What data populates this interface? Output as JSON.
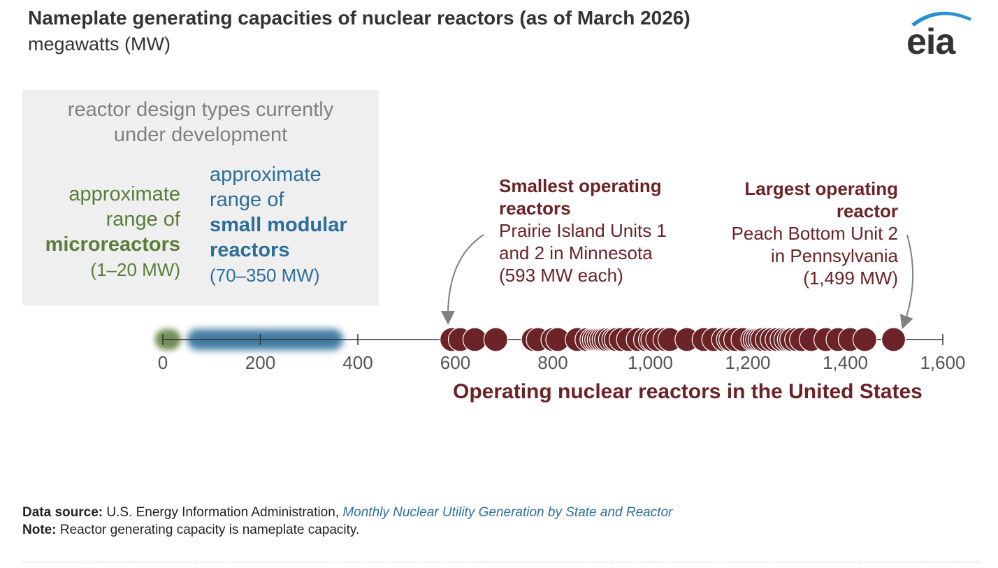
{
  "header": {
    "title": "Nameplate generating capacities of nuclear reactors (as of March 2026)",
    "subtitle": "megawatts (MW)",
    "logo_text": "eia"
  },
  "development_panel": {
    "heading_line1": "reactor design types currently",
    "heading_line2": "under development",
    "micro": {
      "line1": "approximate",
      "line2": "range of",
      "name": "microreactors",
      "range": "(1–20 MW)"
    },
    "smr": {
      "line1": "approximate",
      "line2": "range of",
      "name_line1": "small modular",
      "name_line2": "reactors",
      "range": "(70–350 MW)"
    }
  },
  "annotations": {
    "smallest": {
      "title_line1": "Smallest operating",
      "title_line2": "reactors",
      "line1": "Prairie Island Units 1",
      "line2": "and 2 in Minnesota",
      "line3": "(593 MW each)"
    },
    "largest": {
      "title_line1": "Largest operating",
      "title_line2": "reactor",
      "line1": "Peach Bottom Unit 2",
      "line2": "in Pennsylvania",
      "line3": "(1,499 MW)"
    }
  },
  "operating_label": "Operating nuclear reactors in the United States",
  "footer": {
    "source_label": "Data source:",
    "source_text": "U.S. Energy Information Administration,",
    "source_link": "Monthly Nuclear Utility Generation by State and Reactor",
    "note_label": "Note:",
    "note_text": "Reactor generating capacity is nameplate capacity."
  },
  "colors": {
    "reactor": "#6b2327",
    "micro": "#5b7d3a",
    "smr": "#2d6e99",
    "axis": "#333333"
  },
  "chart_data": {
    "type": "scatter",
    "title": "Nameplate generating capacities of nuclear reactors (as of March 2026)",
    "xlabel": "megawatts (MW)",
    "xlim": [
      0,
      1600
    ],
    "ticks": [
      0,
      200,
      400,
      600,
      800,
      1000,
      1200,
      1400,
      1600
    ],
    "tick_labels": [
      "0",
      "200",
      "400",
      "600",
      "800",
      "1,000",
      "1,200",
      "1,400",
      "1,600"
    ],
    "ranges": [
      {
        "name": "microreactors",
        "min": 1,
        "max": 20
      },
      {
        "name": "small modular reactors",
        "min": 70,
        "max": 350
      }
    ],
    "series": [
      {
        "name": "Operating nuclear reactors in the United States",
        "values": [
          593,
          593,
          610,
          640,
          683,
          760,
          770,
          800,
          810,
          850,
          870,
          880,
          885,
          890,
          895,
          900,
          905,
          910,
          918,
          925,
          930,
          940,
          955,
          975,
          990,
          1000,
          1005,
          1015,
          1030,
          1040,
          1075,
          1110,
          1130,
          1150,
          1160,
          1165,
          1175,
          1190,
          1210,
          1215,
          1220,
          1225,
          1230,
          1240,
          1250,
          1260,
          1270,
          1278,
          1285,
          1290,
          1300,
          1310,
          1330,
          1360,
          1385,
          1410,
          1440,
          1499
        ]
      }
    ]
  }
}
